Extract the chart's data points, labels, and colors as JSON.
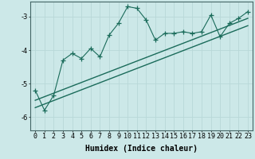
{
  "xlabel": "Humidex (Indice chaleur)",
  "ylabel": "",
  "background_color": "#cce8e8",
  "grid_color": "#aacccc",
  "line_color": "#1a6b5a",
  "xlim": [
    -0.5,
    23.5
  ],
  "ylim": [
    -6.4,
    -2.55
  ],
  "yticks": [
    -6,
    -5,
    -4,
    -3
  ],
  "xticks": [
    0,
    1,
    2,
    3,
    4,
    5,
    6,
    7,
    8,
    9,
    10,
    11,
    12,
    13,
    14,
    15,
    16,
    17,
    18,
    19,
    20,
    21,
    22,
    23
  ],
  "scatter_x": [
    0,
    1,
    2,
    3,
    4,
    5,
    6,
    7,
    8,
    9,
    10,
    11,
    12,
    13,
    14,
    15,
    16,
    17,
    18,
    19,
    20,
    21,
    22,
    23
  ],
  "scatter_y": [
    -5.2,
    -5.8,
    -5.35,
    -4.3,
    -4.1,
    -4.25,
    -3.95,
    -4.2,
    -3.55,
    -3.2,
    -2.7,
    -2.75,
    -3.1,
    -3.7,
    -3.5,
    -3.5,
    -3.45,
    -3.5,
    -3.45,
    -2.95,
    -3.6,
    -3.2,
    -3.05,
    -2.85
  ],
  "line1_x": [
    0,
    23
  ],
  "line1_y": [
    -5.5,
    -3.05
  ],
  "line2_x": [
    0,
    23
  ],
  "line2_y": [
    -5.72,
    -3.27
  ],
  "marker_size": 4,
  "line_width": 0.8,
  "font_size_xlabel": 7,
  "font_size_ticks": 6
}
